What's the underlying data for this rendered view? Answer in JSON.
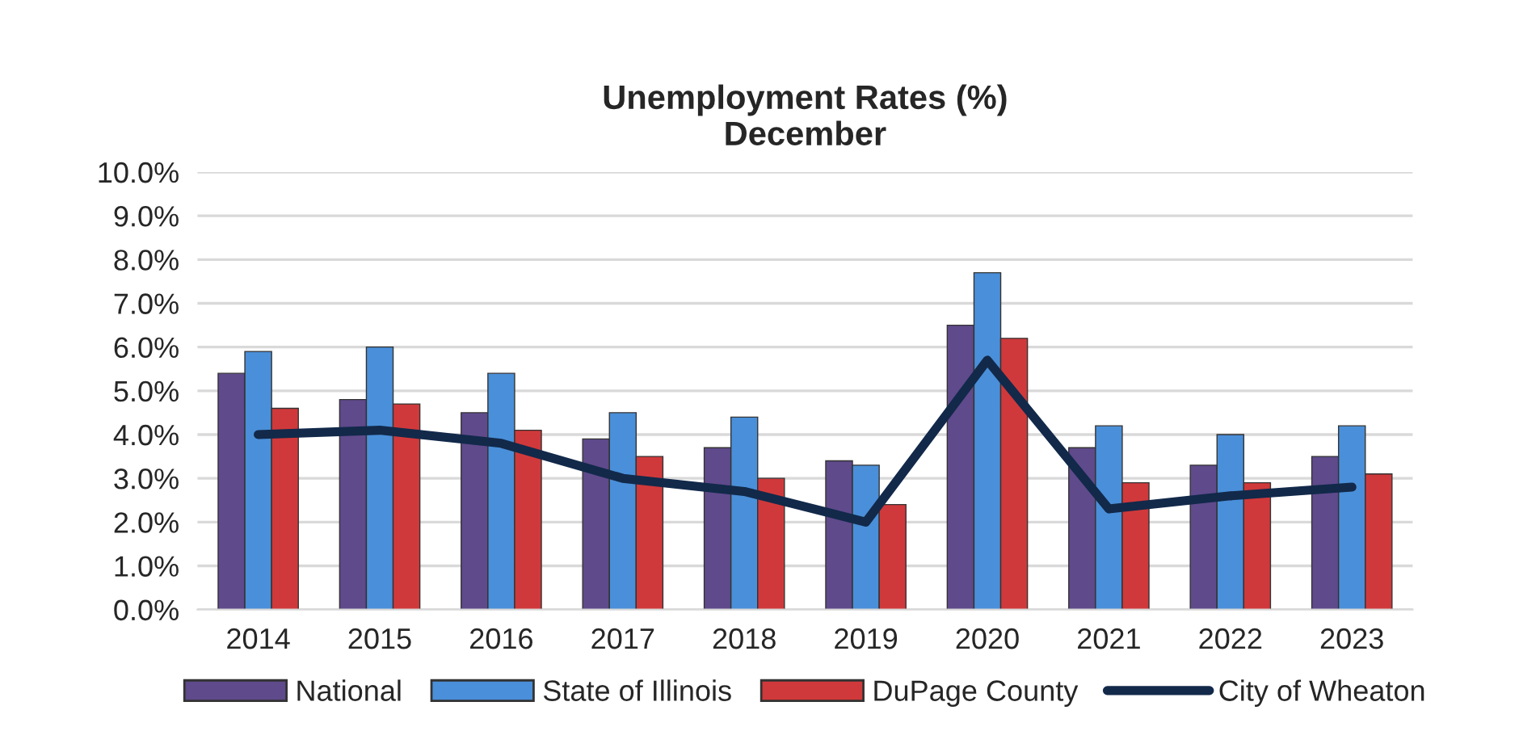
{
  "chart_data": {
    "type": "bar",
    "title": "Unemployment Rates (%)\nDecember",
    "categories": [
      "2014",
      "2015",
      "2016",
      "2017",
      "2018",
      "2019",
      "2020",
      "2021",
      "2022",
      "2023"
    ],
    "series": [
      {
        "name": "National",
        "color": "#5f4a8b",
        "values": [
          5.4,
          4.8,
          4.5,
          3.9,
          3.7,
          3.4,
          6.5,
          3.7,
          3.3,
          3.5
        ]
      },
      {
        "name": "State of Illinois",
        "color": "#4a8fd9",
        "values": [
          5.9,
          6.0,
          5.4,
          4.5,
          4.4,
          3.3,
          7.7,
          4.2,
          4.0,
          4.2
        ]
      },
      {
        "name": "DuPage County",
        "color": "#d0393b",
        "values": [
          4.6,
          4.7,
          4.1,
          3.5,
          3.0,
          2.4,
          6.2,
          2.9,
          2.9,
          3.1
        ]
      },
      {
        "name": "City of Wheaton",
        "type": "line",
        "color": "#12294a",
        "values": [
          4.0,
          4.1,
          3.8,
          3.0,
          2.7,
          2.0,
          5.7,
          2.3,
          2.6,
          2.8
        ]
      }
    ],
    "ylim": [
      0,
      10
    ],
    "yticks": [
      {
        "value": 0,
        "label": "0.0%"
      },
      {
        "value": 1,
        "label": "1.0%"
      },
      {
        "value": 2,
        "label": "2.0%"
      },
      {
        "value": 3,
        "label": "3.0%"
      },
      {
        "value": 4,
        "label": "4.0%"
      },
      {
        "value": 5,
        "label": "5.0%"
      },
      {
        "value": 6,
        "label": "6.0%"
      },
      {
        "value": 7,
        "label": "7.0%"
      },
      {
        "value": 8,
        "label": "8.0%"
      },
      {
        "value": 9,
        "label": "9.0%"
      },
      {
        "value": 10,
        "label": "10.0%"
      }
    ],
    "grid": "y",
    "legend": "bottom",
    "marker": "none",
    "line_style": "solid"
  }
}
